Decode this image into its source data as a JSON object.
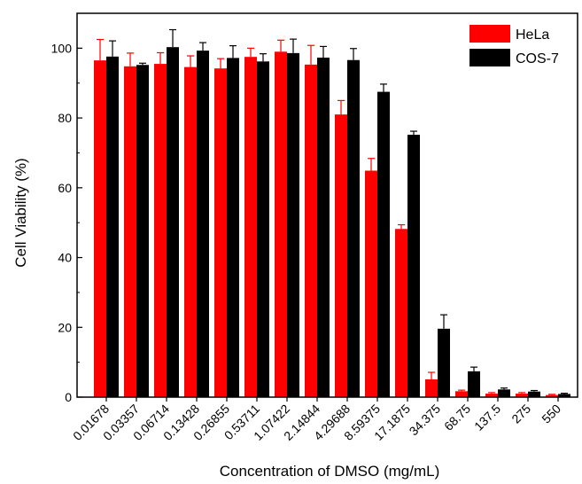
{
  "chart_data": {
    "type": "bar",
    "title": "",
    "xlabel": "Concentration of DMSO (mg/mL)",
    "ylabel": "Cell Viability (%)",
    "ylim": [
      0,
      110
    ],
    "yticks": [
      0,
      20,
      40,
      60,
      80,
      100
    ],
    "categories": [
      "0.01678",
      "0.03357",
      "0.06714",
      "0.13428",
      "0.26855",
      "0.53711",
      "1.07422",
      "2.14844",
      "4.29688",
      "8.59375",
      "17.1875",
      "34.375",
      "68.75",
      "137.5",
      "275",
      "550"
    ],
    "series": [
      {
        "name": "HeLa",
        "color": "#ff0000",
        "values": [
          96.5,
          94.8,
          95.5,
          94.6,
          94.2,
          97.5,
          99.0,
          95.3,
          81.0,
          64.9,
          48.2,
          5.1,
          1.7,
          1.0,
          1.0,
          0.6
        ],
        "errors": [
          6.0,
          3.8,
          3.2,
          3.2,
          2.8,
          2.5,
          3.3,
          5.5,
          4.0,
          3.5,
          1.2,
          2.0,
          0.3,
          0.3,
          0.3,
          0.2
        ]
      },
      {
        "name": "COS-7",
        "color": "#000000",
        "values": [
          97.6,
          95.2,
          100.3,
          99.3,
          97.2,
          96.2,
          98.6,
          97.3,
          96.6,
          87.5,
          75.2,
          19.6,
          7.4,
          2.2,
          1.6,
          0.9
        ],
        "errors": [
          4.5,
          0.5,
          5.0,
          2.3,
          3.5,
          2.2,
          4.0,
          3.2,
          3.3,
          2.2,
          1.0,
          4.0,
          1.2,
          0.4,
          0.3,
          0.2
        ]
      }
    ],
    "legend_position": "top-right",
    "grid": false
  }
}
